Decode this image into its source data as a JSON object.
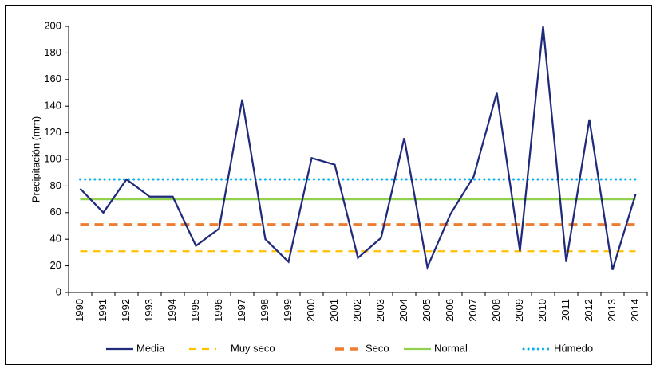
{
  "chart_data": {
    "type": "line",
    "y_label": "Precipitación (mm)",
    "categories": [
      "1990",
      "1991",
      "1992",
      "1993",
      "1994",
      "1995",
      "1996",
      "1997",
      "1998",
      "1999",
      "2000",
      "2001",
      "2002",
      "2003",
      "2004",
      "2005",
      "2006",
      "2007",
      "2008",
      "2009",
      "2010",
      "2011",
      "2012",
      "2013",
      "2014"
    ],
    "series": [
      {
        "name": "Media",
        "color": "#1f2a7a",
        "style": "solid",
        "values": [
          78,
          60,
          85,
          72,
          72,
          35,
          48,
          145,
          40,
          23,
          101,
          96,
          26,
          41,
          116,
          19,
          59,
          87,
          150,
          31,
          200,
          23,
          130,
          17,
          74
        ]
      },
      {
        "name": "Muy seco",
        "color": "#ffc000",
        "style": "dashed",
        "values": [
          31,
          31,
          31,
          31,
          31,
          31,
          31,
          31,
          31,
          31,
          31,
          31,
          31,
          31,
          31,
          31,
          31,
          31,
          31,
          31,
          31,
          31,
          31,
          31,
          31
        ]
      },
      {
        "name": "Seco",
        "color": "#ed7d31",
        "style": "bold-dashed",
        "values": [
          51,
          51,
          51,
          51,
          51,
          51,
          51,
          51,
          51,
          51,
          51,
          51,
          51,
          51,
          51,
          51,
          51,
          51,
          51,
          51,
          51,
          51,
          51,
          51,
          51
        ]
      },
      {
        "name": "Normal",
        "color": "#92d050",
        "style": "solid",
        "values": [
          70,
          70,
          70,
          70,
          70,
          70,
          70,
          70,
          70,
          70,
          70,
          70,
          70,
          70,
          70,
          70,
          70,
          70,
          70,
          70,
          70,
          70,
          70,
          70,
          70
        ]
      },
      {
        "name": "Húmedo",
        "color": "#00b0f0",
        "style": "dotted",
        "values": [
          85,
          85,
          85,
          85,
          85,
          85,
          85,
          85,
          85,
          85,
          85,
          85,
          85,
          85,
          85,
          85,
          85,
          85,
          85,
          85,
          85,
          85,
          85,
          85,
          85
        ]
      }
    ],
    "ylim": [
      0,
      200
    ],
    "yticks": [
      0,
      20,
      40,
      60,
      80,
      100,
      120,
      140,
      160,
      180,
      200
    ],
    "grid": false,
    "legend": "bottom"
  }
}
